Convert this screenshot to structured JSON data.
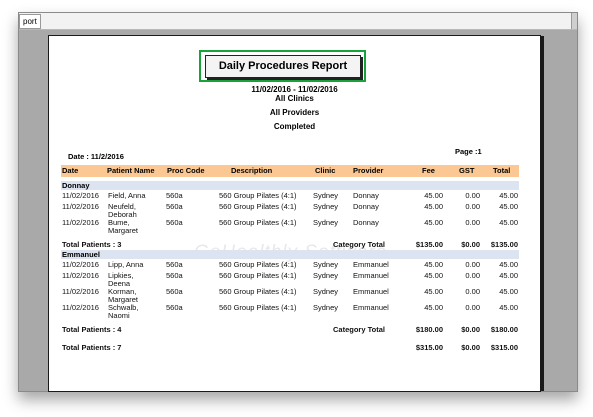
{
  "toolbar": {
    "tab_label": "port"
  },
  "report": {
    "title": "Daily Procedures Report",
    "date_range": "11/02/2016 - 11/02/2016",
    "clinics": "All Clinics",
    "providers": "All Providers",
    "status": "Completed",
    "date_label": "Date  :  11/2/2016",
    "page_label": "Page :1",
    "watermark": "GoHealthly Software"
  },
  "columns": [
    "Date",
    "Patient Name",
    "Proc Code",
    "Description",
    "Clinic",
    "Provider",
    "Fee",
    "GST",
    "Total"
  ],
  "groups": [
    {
      "name": "Donnay",
      "rows": [
        {
          "date": "11/02/2016",
          "patient": [
            "Field, Anna"
          ],
          "code": "560a",
          "desc": "560 Group Pilates (4:1)",
          "clinic": "Sydney",
          "provider": "Donnay",
          "fee": "45.00",
          "gst": "0.00",
          "total": "45.00"
        },
        {
          "date": "11/02/2016",
          "patient": [
            "Neufeld,",
            "Deborah"
          ],
          "code": "560a",
          "desc": "560 Group Pilates (4:1)",
          "clinic": "Sydney",
          "provider": "Donnay",
          "fee": "45.00",
          "gst": "0.00",
          "total": "45.00"
        },
        {
          "date": "11/02/2016",
          "patient": [
            "Bume,",
            "Margaret"
          ],
          "code": "560a",
          "desc": "560 Group Pilates (4:1)",
          "clinic": "Sydney",
          "provider": "Donnay",
          "fee": "45.00",
          "gst": "0.00",
          "total": "45.00"
        }
      ],
      "total_patients": "Total Patients :  3",
      "category_label": "Category Total",
      "fee": "$135.00",
      "gst": "$0.00",
      "total": "$135.00"
    },
    {
      "name": "Emmanuel",
      "rows": [
        {
          "date": "11/02/2016",
          "patient": [
            "Lipp, Anna"
          ],
          "code": "560a",
          "desc": "560 Group Pilates (4:1)",
          "clinic": "Sydney",
          "provider": "Emmanuel",
          "fee": "45.00",
          "gst": "0.00",
          "total": "45.00"
        },
        {
          "date": "11/02/2016",
          "patient": [
            "Lipkies,",
            "Deena"
          ],
          "code": "560a",
          "desc": "560 Group Pilates (4:1)",
          "clinic": "Sydney",
          "provider": "Emmanuel",
          "fee": "45.00",
          "gst": "0.00",
          "total": "45.00"
        },
        {
          "date": "11/02/2016",
          "patient": [
            "Korman,",
            "Margaret"
          ],
          "code": "560a",
          "desc": "560 Group Pilates (4:1)",
          "clinic": "Sydney",
          "provider": "Emmanuel",
          "fee": "45.00",
          "gst": "0.00",
          "total": "45.00"
        },
        {
          "date": "11/02/2016",
          "patient": [
            "Schwalb,",
            "Naomi"
          ],
          "code": "560a",
          "desc": "560 Group Pilates (4:1)",
          "clinic": "Sydney",
          "provider": "Emmanuel",
          "fee": "45.00",
          "gst": "0.00",
          "total": "45.00"
        }
      ],
      "total_patients": "Total Patients :  4",
      "category_label": "Category Total",
      "fee": "$180.00",
      "gst": "$0.00",
      "total": "$180.00"
    }
  ],
  "grand": {
    "total_patients": "Total Patients : 7",
    "fee": "$315.00",
    "gst": "$0.00",
    "total": "$315.00"
  }
}
